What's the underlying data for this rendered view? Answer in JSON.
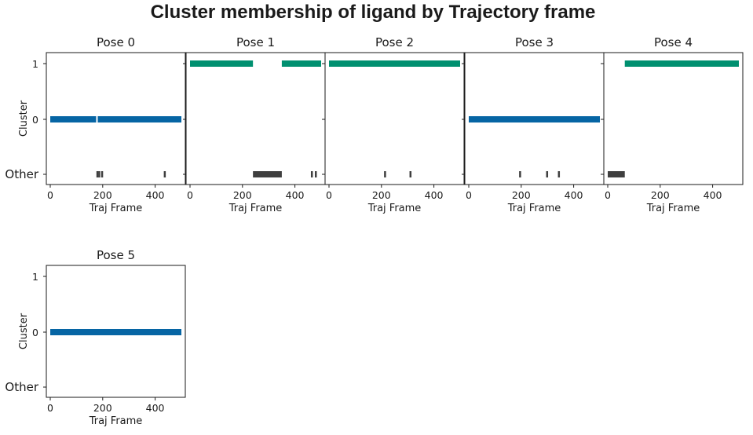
{
  "chart_data": {
    "type": "broken_barh",
    "title": "Cluster membership of ligand by Trajectory frame",
    "xlabel": "Traj Frame",
    "ylabel": "Cluster",
    "xlim": [
      -15,
      515
    ],
    "xticks": [
      0,
      200,
      400
    ],
    "yticks": [
      "1",
      "0",
      "Other"
    ],
    "colors": {
      "1": "#009070",
      "0": "#0665a4",
      "Other": "#3f3f3f"
    },
    "panels": [
      {
        "title": "Pose 0",
        "segments": [
          {
            "cluster": "0",
            "start": 0,
            "end": 176
          },
          {
            "cluster": "0",
            "start": 180,
            "end": 500
          },
          {
            "cluster": "Other",
            "start": 176,
            "end": 180
          },
          {
            "cluster": "Other",
            "start": 183,
            "end": 186
          },
          {
            "cluster": "Other",
            "start": 194,
            "end": 197
          },
          {
            "cluster": "Other",
            "start": 433,
            "end": 437
          }
        ]
      },
      {
        "title": "Pose 1",
        "segments": [
          {
            "cluster": "1",
            "start": 0,
            "end": 240
          },
          {
            "cluster": "1",
            "start": 350,
            "end": 500
          },
          {
            "cluster": "Other",
            "start": 240,
            "end": 350
          },
          {
            "cluster": "Other",
            "start": 461,
            "end": 464
          },
          {
            "cluster": "Other",
            "start": 476,
            "end": 479
          }
        ]
      },
      {
        "title": "Pose 2",
        "segments": [
          {
            "cluster": "1",
            "start": 0,
            "end": 500
          },
          {
            "cluster": "Other",
            "start": 210,
            "end": 213
          },
          {
            "cluster": "Other",
            "start": 307,
            "end": 310
          }
        ]
      },
      {
        "title": "Pose 3",
        "segments": [
          {
            "cluster": "0",
            "start": 0,
            "end": 500
          },
          {
            "cluster": "Other",
            "start": 192,
            "end": 195
          },
          {
            "cluster": "Other",
            "start": 295,
            "end": 298
          },
          {
            "cluster": "Other",
            "start": 340,
            "end": 343
          }
        ]
      },
      {
        "title": "Pose 4",
        "segments": [
          {
            "cluster": "Other",
            "start": 0,
            "end": 65
          },
          {
            "cluster": "1",
            "start": 65,
            "end": 500
          }
        ]
      },
      {
        "title": "Pose 5",
        "segments": [
          {
            "cluster": "0",
            "start": 0,
            "end": 500
          }
        ]
      }
    ]
  }
}
